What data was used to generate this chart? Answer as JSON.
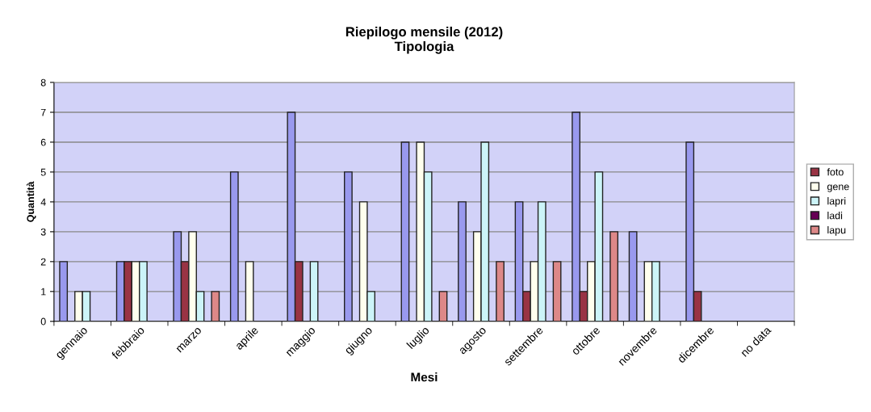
{
  "chart_data": {
    "type": "bar",
    "title": "Riepilogo mensile (2012)\nTipologia",
    "xlabel": "Mesi",
    "ylabel": "Quantità",
    "categories": [
      "gennaio",
      "febbraio",
      "marzo",
      "aprile",
      "maggio",
      "giugno",
      "luglio",
      "agosto",
      "settembre",
      "ottobre",
      "novembre",
      "dicembre",
      "no data"
    ],
    "series": [
      {
        "color": "#9999ee",
        "values": [
          2,
          2,
          3,
          5,
          7,
          5,
          6,
          4,
          4,
          7,
          3,
          6,
          null
        ]
      },
      {
        "name": "foto",
        "color": "#993344",
        "values": [
          0,
          2,
          2,
          0,
          2,
          0,
          0,
          0,
          1,
          1,
          0,
          1,
          null
        ]
      },
      {
        "name": "gene",
        "color": "#ffffee",
        "values": [
          1,
          2,
          3,
          2,
          0,
          4,
          6,
          3,
          2,
          2,
          2,
          0,
          null
        ]
      },
      {
        "name": "lapri",
        "color": "#ccf4f8",
        "values": [
          1,
          2,
          1,
          0,
          2,
          1,
          5,
          6,
          4,
          5,
          2,
          0,
          null
        ]
      },
      {
        "name": "ladi",
        "color": "#660055",
        "values": [
          0,
          0,
          0,
          0,
          0,
          0,
          0,
          0,
          0,
          0,
          0,
          0,
          null
        ]
      },
      {
        "name": "lapu",
        "color": "#dd8888",
        "values": [
          0,
          0,
          1,
          0,
          0,
          0,
          1,
          2,
          2,
          3,
          0,
          0,
          null
        ]
      }
    ],
    "ylim": [
      0,
      8
    ],
    "yticks": [
      0,
      1,
      2,
      3,
      4,
      5,
      6,
      7,
      8
    ],
    "grid": "y",
    "legend": "right"
  }
}
